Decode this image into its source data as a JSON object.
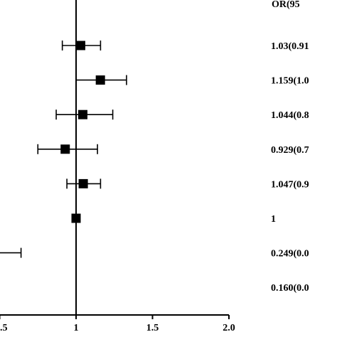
{
  "chart_data": {
    "type": "forest",
    "header": "OR(95",
    "reference_value": 1,
    "xlim": [
      0.5,
      2.0
    ],
    "x_ticks": [
      {
        "value": 0.5,
        "label": ".5"
      },
      {
        "value": 1.0,
        "label": "1"
      },
      {
        "value": 1.5,
        "label": "1.5"
      },
      {
        "value": 2.0,
        "label": "2.0"
      }
    ],
    "rows": [
      {
        "or": 1.03,
        "lower": 0.91,
        "upper": 1.16,
        "label": "1.03(0.91"
      },
      {
        "or": 1.159,
        "lower": 1.0,
        "upper": 1.33,
        "label": "1.159(1.0"
      },
      {
        "or": 1.044,
        "lower": 0.87,
        "upper": 1.24,
        "label": "1.044(0.8"
      },
      {
        "or": 0.929,
        "lower": 0.75,
        "upper": 1.14,
        "label": "0.929(0.7"
      },
      {
        "or": 1.047,
        "lower": 0.94,
        "upper": 1.16,
        "label": "1.047(0.9"
      },
      {
        "or": 1,
        "lower": 1,
        "upper": 1,
        "label": "1"
      },
      {
        "or": 0.249,
        "lower": 0.01,
        "upper": 0.64,
        "label": "0.249(0.0"
      },
      {
        "or": 0.16,
        "lower": 0.04,
        "upper": 0.5,
        "label": "0.160(0.0"
      }
    ]
  }
}
